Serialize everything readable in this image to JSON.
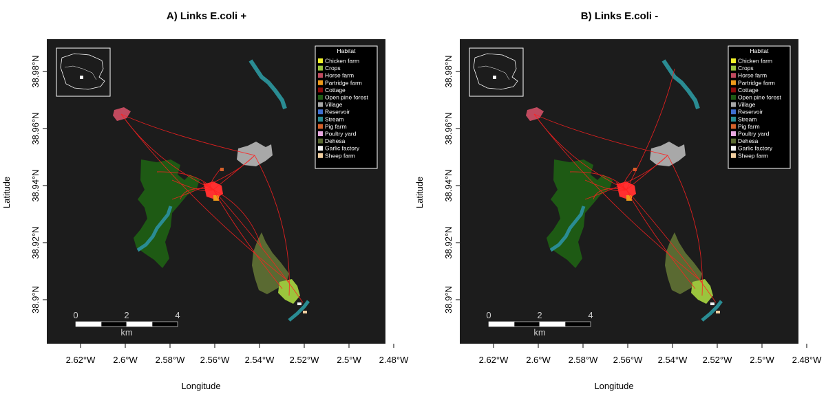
{
  "panels": [
    {
      "id": "a",
      "title": "A) Links E.coli +",
      "xlabel": "Longitude",
      "ylabel": "Latitude"
    },
    {
      "id": "b",
      "title": "B) Links E.coli -",
      "xlabel": "Longitude",
      "ylabel": "Latitude"
    }
  ],
  "x_ticks": [
    "2.62°W",
    "2.6°W",
    "2.58°W",
    "2.56°W",
    "2.54°W",
    "2.52°W",
    "2.5°W",
    "2.48°W"
  ],
  "y_ticks": [
    "38.98°N",
    "38.96°N",
    "38.94°N",
    "38.92°N",
    "38.9°N"
  ],
  "legend": {
    "title": "Habitat",
    "items": [
      {
        "label": "Chicken farm",
        "color": "#f2f22a"
      },
      {
        "label": "Crops",
        "color": "#9bc53d"
      },
      {
        "label": "Horse farm",
        "color": "#c04a5e"
      },
      {
        "label": "Partridge farm",
        "color": "#ee9a1a"
      },
      {
        "label": "Cottage",
        "color": "#8b0a0a"
      },
      {
        "label": "Open pine forest",
        "color": "#1e5a14"
      },
      {
        "label": "Village",
        "color": "#a8a8a8"
      },
      {
        "label": "Reservoir",
        "color": "#3f6fd1"
      },
      {
        "label": "Stream",
        "color": "#2a8c93"
      },
      {
        "label": "Pig farm",
        "color": "#d4612a"
      },
      {
        "label": "Poultry yard",
        "color": "#e8a8e0"
      },
      {
        "label": "Dehesa",
        "color": "#5a6a32"
      },
      {
        "label": "Garlic factory",
        "color": "#f2f2f2"
      },
      {
        "label": "Sheep farm",
        "color": "#f2cfa0"
      }
    ]
  },
  "scalebar": {
    "labels": [
      "0",
      "2",
      "4"
    ],
    "unit": "km"
  },
  "colors": {
    "map_background": "#1c1c1c",
    "link": "#ff2020",
    "border": "#ffffff"
  }
}
